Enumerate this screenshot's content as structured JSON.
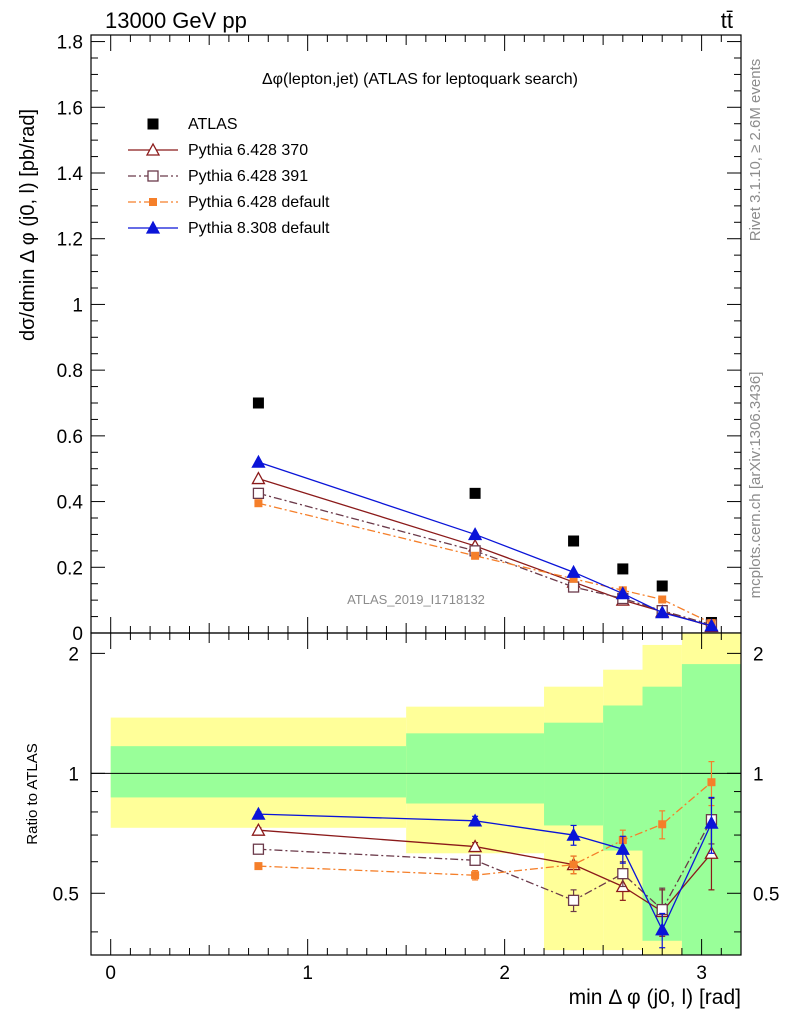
{
  "header": {
    "energy_label": "13000 GeV pp",
    "process_label": "tt̄"
  },
  "side_labels": {
    "rivet": "Rivet 3.1.10, ≥ 2.6M events",
    "mcplots": "mcplots.cern.ch [arXiv:1306.3436]"
  },
  "watermark": "ATLAS_2019_I1718132",
  "colors": {
    "data": "#000000",
    "py6_370": "#8b1a1a",
    "py6_391": "#6b3a4a",
    "py6_default": "#f57f2a",
    "py8_default": "#0a14d8",
    "band_green": "#99ff99",
    "band_yellow": "#ffff99"
  },
  "chart_data": [
    {
      "type": "line",
      "title": "Δφ(lepton,jet) (ATLAS for leptoquark search)",
      "ylabel": "dσ/dmin Δ φ (j0, l) [pb/rad]",
      "xlabel": "",
      "xlim": [
        -0.1,
        3.2
      ],
      "ylim": [
        0,
        1.82
      ],
      "y_ticks": [
        "0",
        "0.2",
        "0.4",
        "0.6",
        "0.8",
        "1",
        "1.2",
        "1.4",
        "1.6",
        "1.8"
      ],
      "legend_position": "top-left",
      "x": [
        0.75,
        1.85,
        2.35,
        2.6,
        2.8,
        3.05
      ],
      "series": [
        {
          "name": "ATLAS",
          "marker": "filled-square",
          "values": [
            0.7,
            0.425,
            0.28,
            0.195,
            0.143,
            0.032
          ]
        },
        {
          "name": "Pythia 6.428 370",
          "marker": "open-triangle",
          "values": [
            0.47,
            0.265,
            0.155,
            0.1,
            0.065,
            0.02
          ]
        },
        {
          "name": "Pythia 6.428 391",
          "marker": "open-square",
          "values": [
            0.425,
            0.25,
            0.14,
            0.105,
            0.068,
            0.025
          ]
        },
        {
          "name": "Pythia 6.428 default",
          "marker": "filled-square-small",
          "values": [
            0.395,
            0.235,
            0.165,
            0.13,
            0.102,
            0.03
          ]
        },
        {
          "name": "Pythia 8.308 default",
          "marker": "filled-triangle",
          "values": [
            0.52,
            0.3,
            0.185,
            0.12,
            0.062,
            0.022
          ]
        }
      ]
    },
    {
      "type": "line",
      "title": "",
      "ylabel": "Ratio to ATLAS",
      "xlabel": "min Δ φ (j0, l) [rad]",
      "xlim": [
        -0.1,
        3.2
      ],
      "ylim": [
        0.35,
        2.25
      ],
      "y_scale": "log",
      "y_ticks": [
        "0.5",
        "1",
        "2"
      ],
      "x_ticks": [
        "0",
        "1",
        "2",
        "3"
      ],
      "reference_line": 1,
      "bins": [
        {
          "lo": 0.0,
          "hi": 1.5,
          "green": [
            0.87,
            1.17
          ],
          "yellow": [
            0.73,
            1.38
          ]
        },
        {
          "lo": 1.5,
          "hi": 2.2,
          "green": [
            0.84,
            1.26
          ],
          "yellow": [
            0.63,
            1.47
          ]
        },
        {
          "lo": 2.2,
          "hi": 2.5,
          "green": [
            0.74,
            1.34
          ],
          "yellow": [
            0.36,
            1.65
          ]
        },
        {
          "lo": 2.5,
          "hi": 2.7,
          "green": [
            0.64,
            1.48
          ],
          "yellow": [
            0.36,
            1.82
          ]
        },
        {
          "lo": 2.7,
          "hi": 2.9,
          "green": [
            0.38,
            1.65
          ],
          "yellow": [
            0.35,
            2.1
          ]
        },
        {
          "lo": 2.9,
          "hi": 3.2,
          "green": [
            0.35,
            1.88
          ],
          "yellow": [
            0.35,
            2.25
          ]
        }
      ],
      "x": [
        0.75,
        1.85,
        2.35,
        2.6,
        2.8,
        3.05
      ],
      "series": [
        {
          "name": "Pythia 6.428 370",
          "values": [
            0.72,
            0.655,
            0.59,
            0.52,
            0.45,
            0.63
          ],
          "errors": [
            0.01,
            0.015,
            0.03,
            0.04,
            0.06,
            0.12
          ]
        },
        {
          "name": "Pythia 6.428 391",
          "values": [
            0.645,
            0.605,
            0.48,
            0.56,
            0.455,
            0.765
          ],
          "errors": [
            0.01,
            0.015,
            0.03,
            0.04,
            0.06,
            0.1
          ]
        },
        {
          "name": "Pythia 6.428 default",
          "values": [
            0.585,
            0.555,
            0.59,
            0.68,
            0.745,
            0.95
          ],
          "errors": [
            0.01,
            0.015,
            0.03,
            0.04,
            0.06,
            0.12
          ]
        },
        {
          "name": "Pythia 8.308 default",
          "values": [
            0.79,
            0.76,
            0.7,
            0.645,
            0.405,
            0.75
          ],
          "errors": [
            0.01,
            0.02,
            0.04,
            0.05,
            0.04,
            0.12
          ]
        }
      ]
    }
  ]
}
